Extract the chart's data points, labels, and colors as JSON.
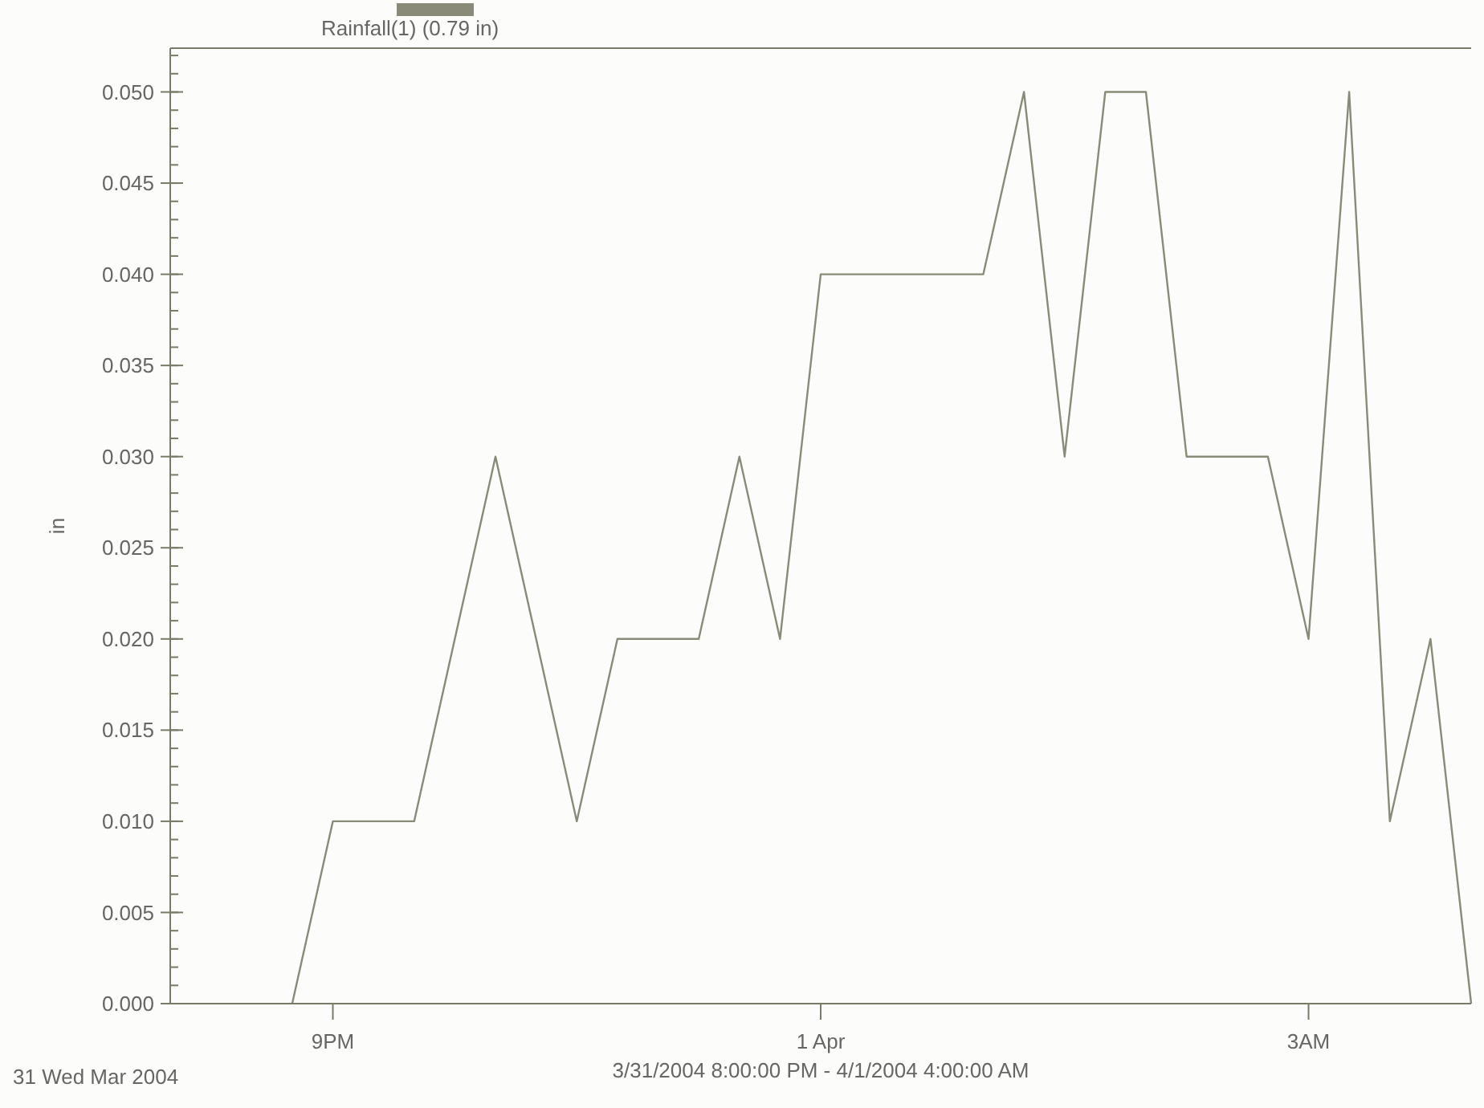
{
  "chart_data": {
    "type": "line",
    "xlabel": "3/31/2004 8:00:00 PM - 4/1/2004 4:00:00 AM",
    "ylabel": "in",
    "annotations": [
      "31 Wed Mar 2004"
    ],
    "categories": [
      null,
      null,
      null,
      null,
      "9PM",
      null,
      null,
      null,
      null,
      null,
      null,
      null,
      null,
      null,
      null,
      null,
      "1 Apr",
      null,
      null,
      null,
      null,
      null,
      null,
      null,
      null,
      null,
      null,
      null,
      "3AM",
      null,
      null,
      null,
      null
    ],
    "series": [
      {
        "name": "Rainfall(1) (0.79 in)",
        "color": "#8a8a78",
        "values": [
          null,
          null,
          null,
          0,
          0.01,
          0.01,
          0.01,
          0.02,
          0.03,
          0.02,
          0.01,
          0.02,
          0.02,
          0.02,
          0.03,
          0.02,
          0.04,
          0.04,
          0.04,
          0.04,
          0.04,
          0.05,
          0.03,
          0.05,
          0.05,
          0.03,
          0.03,
          0.03,
          0.02,
          0.05,
          0.01,
          0.02,
          0
        ]
      }
    ],
    "ylim": [
      0,
      0.0524
    ],
    "yticks": [
      {
        "value": 0,
        "label": "0.000"
      },
      {
        "value": 0.005,
        "label": "0.005"
      },
      {
        "value": 0.01,
        "label": "0.010"
      },
      {
        "value": 0.015,
        "label": "0.015"
      },
      {
        "value": 0.02,
        "label": "0.020"
      },
      {
        "value": 0.025,
        "label": "0.025"
      },
      {
        "value": 0.03,
        "label": "0.030"
      },
      {
        "value": 0.035,
        "label": "0.035"
      },
      {
        "value": 0.04,
        "label": "0.040"
      },
      {
        "value": 0.045,
        "label": "0.045"
      },
      {
        "value": 0.05,
        "label": "0.050"
      }
    ],
    "grid": false,
    "legend": "top left",
    "marker": "none",
    "line_style": "solid"
  }
}
